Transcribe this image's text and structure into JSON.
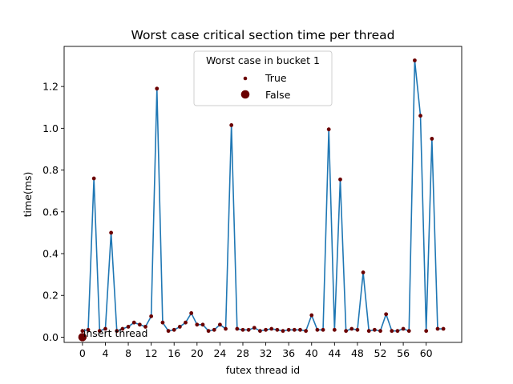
{
  "chart_data": {
    "type": "line",
    "title": "Worst case critical section time per thread",
    "xlabel": "futex thread id",
    "ylabel": "time(ms)",
    "xlim": [
      -3.2,
      66.2
    ],
    "ylim": [
      -0.025,
      1.392
    ],
    "xticks": [
      0,
      4,
      8,
      12,
      16,
      20,
      24,
      28,
      32,
      36,
      40,
      44,
      48,
      52,
      56,
      60
    ],
    "yticks": [
      0.0,
      0.2,
      0.4,
      0.6,
      0.8,
      1.0,
      1.2
    ],
    "ytick_labels": [
      "0.0",
      "0.2",
      "0.4",
      "0.6",
      "0.8",
      "1.0",
      "1.2"
    ],
    "line_color": "#1f77b4",
    "marker_color": "#6b0000",
    "legend": {
      "title": "Worst case in bucket 1",
      "placement": "upper-center",
      "entries": [
        {
          "label": "True",
          "marker": "small"
        },
        {
          "label": "False",
          "marker": "large"
        }
      ]
    },
    "annotation": {
      "text": "insert thread",
      "x": 0,
      "y": 0.0
    },
    "series": [
      {
        "x": [
          0,
          1,
          2,
          3,
          4,
          5,
          6,
          7,
          8,
          9,
          10,
          11,
          12,
          13,
          14,
          15,
          16,
          17,
          18,
          19,
          20,
          21,
          22,
          23,
          24,
          25,
          26,
          27,
          28,
          29,
          30,
          31,
          32,
          33,
          34,
          35,
          36,
          37,
          38,
          39,
          40,
          41,
          42,
          43,
          44,
          45,
          46,
          47,
          48,
          49,
          50,
          51,
          52,
          53,
          54,
          55,
          56,
          57,
          58,
          59,
          60,
          61,
          62,
          63
        ],
        "values": [
          0.03,
          0.035,
          0.76,
          0.03,
          0.04,
          0.5,
          0.03,
          0.04,
          0.05,
          0.07,
          0.06,
          0.05,
          0.1,
          1.19,
          0.07,
          0.03,
          0.035,
          0.05,
          0.07,
          0.115,
          0.06,
          0.06,
          0.03,
          0.035,
          0.06,
          0.04,
          1.015,
          0.04,
          0.035,
          0.035,
          0.045,
          0.03,
          0.035,
          0.04,
          0.035,
          0.03,
          0.035,
          0.035,
          0.035,
          0.03,
          0.105,
          0.035,
          0.035,
          0.995,
          0.035,
          0.755,
          0.03,
          0.04,
          0.035,
          0.31,
          0.03,
          0.035,
          0.03,
          0.11,
          0.03,
          0.03,
          0.04,
          0.03,
          1.325,
          1.06,
          0.03,
          0.95,
          0.04,
          0.04
        ]
      }
    ],
    "highlight_point": {
      "x": 0,
      "y": 0.0,
      "marker": "large"
    }
  }
}
